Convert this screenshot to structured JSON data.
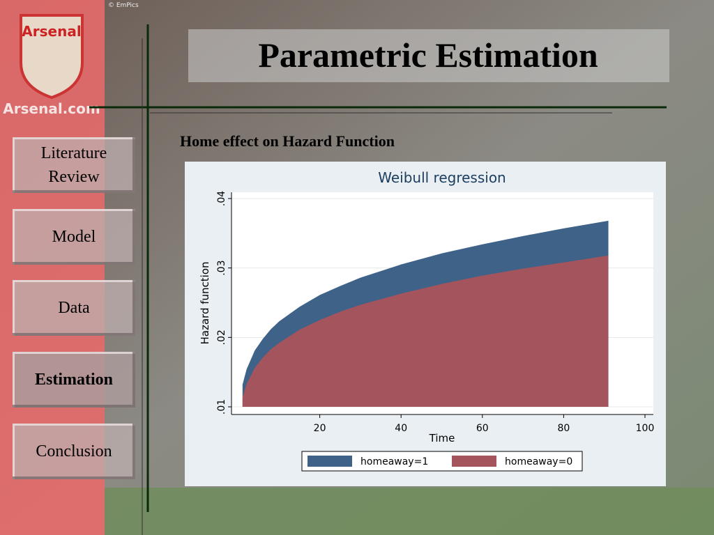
{
  "slide": {
    "title": "Parametric Estimation",
    "subtitle": "Home effect on Hazard Function",
    "logo": "Arsenal",
    "logo_site": "Arsenal.com",
    "credit": "© EmPics",
    "nav": [
      "Literature Review",
      "Model",
      "Data",
      "Estimation",
      "Conclusion"
    ]
  },
  "chart_data": {
    "type": "area",
    "title": "Weibull regression",
    "x_label": "Time",
    "y_label": "Hazard function",
    "x": [
      1,
      2,
      4,
      6,
      8,
      10,
      15,
      20,
      25,
      30,
      40,
      50,
      60,
      70,
      80,
      91
    ],
    "series": [
      {
        "name": "homeaway=1",
        "color": "#3f6289",
        "values": [
          0.0132,
          0.0154,
          0.0181,
          0.0198,
          0.0212,
          0.0223,
          0.0244,
          0.0261,
          0.0274,
          0.0286,
          0.0305,
          0.0321,
          0.0334,
          0.0346,
          0.0357,
          0.0368
        ]
      },
      {
        "name": "homeaway=0",
        "color": "#a3545c",
        "values": [
          0.0114,
          0.0133,
          0.0156,
          0.0171,
          0.0183,
          0.0192,
          0.0211,
          0.0225,
          0.0237,
          0.0247,
          0.0263,
          0.0277,
          0.0289,
          0.0299,
          0.0308,
          0.0318
        ]
      }
    ],
    "xlim": [
      0,
      100
    ],
    "xticks": [
      20,
      40,
      60,
      80,
      100
    ],
    "ylim": [
      0.01,
      0.04
    ],
    "yticks": [
      {
        "value": 0.01,
        "label": ".01"
      },
      {
        "value": 0.02,
        "label": ".02"
      },
      {
        "value": 0.03,
        "label": ".03"
      },
      {
        "value": 0.04,
        "label": ".04"
      }
    ],
    "grid": true,
    "legend": "bottom"
  }
}
